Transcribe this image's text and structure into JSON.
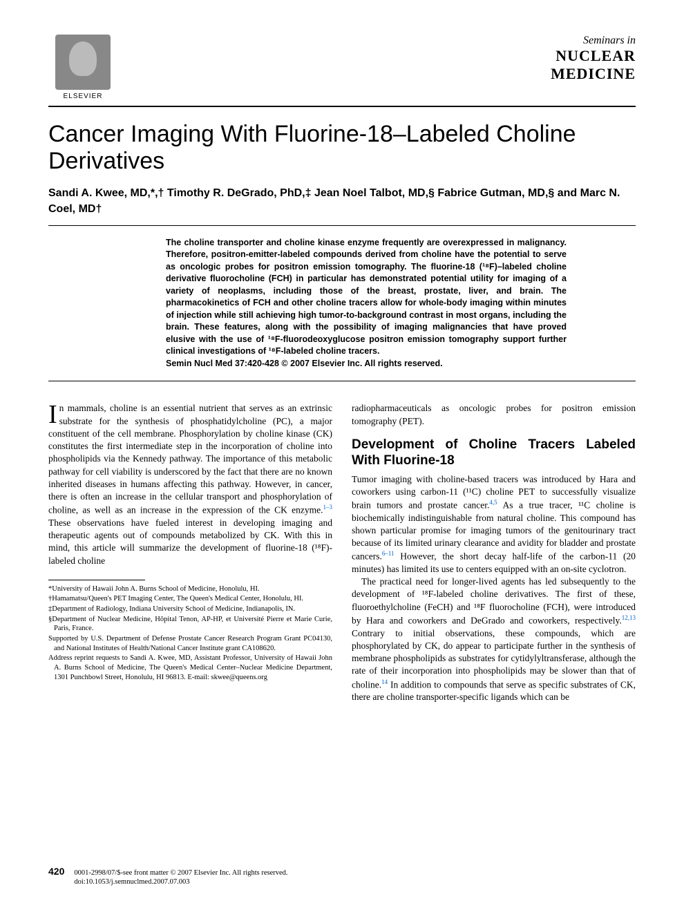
{
  "publisher": {
    "name": "ELSEVIER"
  },
  "journal": {
    "seminars": "Seminars in",
    "line1": "NUCLEAR",
    "line2": "MEDICINE"
  },
  "article": {
    "title": "Cancer Imaging With Fluorine-18–Labeled Choline Derivatives",
    "authors": "Sandi A. Kwee, MD,*,† Timothy R. DeGrado, PhD,‡ Jean Noel Talbot, MD,§ Fabrice Gutman, MD,§ and Marc N. Coel, MD†",
    "abstract": "The choline transporter and choline kinase enzyme frequently are overexpressed in malignancy. Therefore, positron-emitter-labeled compounds derived from choline have the potential to serve as oncologic probes for positron emission tomography. The fluorine-18 (¹⁸F)–labeled choline derivative fluorocholine (FCH) in particular has demonstrated potential utility for imaging of a variety of neoplasms, including those of the breast, prostate, liver, and brain. The pharmacokinetics of FCH and other choline tracers allow for whole-body imaging within minutes of injection while still achieving high tumor-to-background contrast in most organs, including the brain. These features, along with the possibility of imaging malignancies that have proved elusive with the use of ¹⁸F-fluorodeoxyglucose positron emission tomography support further clinical investigations of ¹⁸F-labeled choline tracers.",
    "citation": "Semin Nucl Med 37:420-428 © 2007 Elsevier Inc. All rights reserved."
  },
  "body": {
    "col1_para1_first": "I",
    "col1_para1": "n mammals, choline is an essential nutrient that serves as an extrinsic substrate for the synthesis of phosphatidylcholine (PC), a major constituent of the cell membrane. Phosphorylation by choline kinase (CK) constitutes the first intermediate step in the incorporation of choline into phospholipids via the Kennedy pathway. The importance of this metabolic pathway for cell viability is underscored by the fact that there are no known inherited diseases in humans affecting this pathway. However, in cancer, there is often an increase in the cellular transport and phosphorylation of choline, as well as an increase in the expression of the CK enzyme.",
    "col1_ref1": "1–3",
    "col1_para1_end": " These observations have fueled interest in developing imaging and therapeutic agents out of compounds metabolized by CK. With this in mind, this article will summarize the development of fluorine-18 (¹⁸F)-labeled choline",
    "col2_para1": "radiopharmaceuticals as oncologic probes for positron emission tomography (PET).",
    "section_heading": "Development of Choline Tracers Labeled With Fluorine-18",
    "col2_para2_a": "Tumor imaging with choline-based tracers was introduced by Hara and coworkers using carbon-11 (¹¹C) choline PET to successfully visualize brain tumors and prostate cancer.",
    "col2_ref2": "4,5",
    "col2_para2_b": " As a true tracer, ¹¹C choline is biochemically indistinguishable from natural choline. This compound has shown particular promise for imaging tumors of the genitourinary tract because of its limited urinary clearance and avidity for bladder and prostate cancers.",
    "col2_ref3": "6–11",
    "col2_para2_c": " However, the short decay half-life of the carbon-11 (20 minutes) has limited its use to centers equipped with an on-site cyclotron.",
    "col2_para3_a": "The practical need for longer-lived agents has led subsequently to the development of ¹⁸F-labeled choline derivatives. The first of these, fluoroethylcholine (FeCH) and ¹⁸F fluorocholine (FCH), were introduced by Hara and coworkers and DeGrado and coworkers, respectively.",
    "col2_ref4": "12,13",
    "col2_para3_b": " Contrary to initial observations, these compounds, which are phosphorylated by CK, do appear to participate further in the synthesis of membrane phospholipids as substrates for cytidylyltransferase, although the rate of their incorporation into phospholipids may be slower than that of choline.",
    "col2_ref5": "14",
    "col2_para3_c": " In addition to compounds that serve as specific substrates of CK, there are choline transporter-specific ligands which can be"
  },
  "footnotes": {
    "f1": "*University of Hawaii John A. Burns School of Medicine, Honolulu, HI.",
    "f2": "†Hamamatsu/Queen's PET Imaging Center, The Queen's Medical Center, Honolulu, HI.",
    "f3": "‡Department of Radiology, Indiana University School of Medicine, Indianapolis, IN.",
    "f4": "§Department of Nuclear Medicine, Hôpital Tenon, AP-HP, et Université Pierre et Marie Curie, Paris, France.",
    "f5": "Supported by U.S. Department of Defense Prostate Cancer Research Program Grant PC04130, and National Institutes of Health/National Cancer Institute grant CA108620.",
    "f6": "Address reprint requests to Sandi A. Kwee, MD, Assistant Professor, University of Hawaii John A. Burns School of Medicine, The Queen's Medical Center–Nuclear Medicine Department, 1301 Punchbowl Street, Honolulu, HI 96813. E-mail: skwee@queens.org"
  },
  "footer": {
    "page": "420",
    "line1": "0001-2998/07/$-see front matter © 2007 Elsevier Inc. All rights reserved.",
    "line2": "doi:10.1053/j.semnuclmed.2007.07.003"
  },
  "colors": {
    "text": "#000000",
    "link": "#0066cc",
    "background": "#ffffff"
  }
}
